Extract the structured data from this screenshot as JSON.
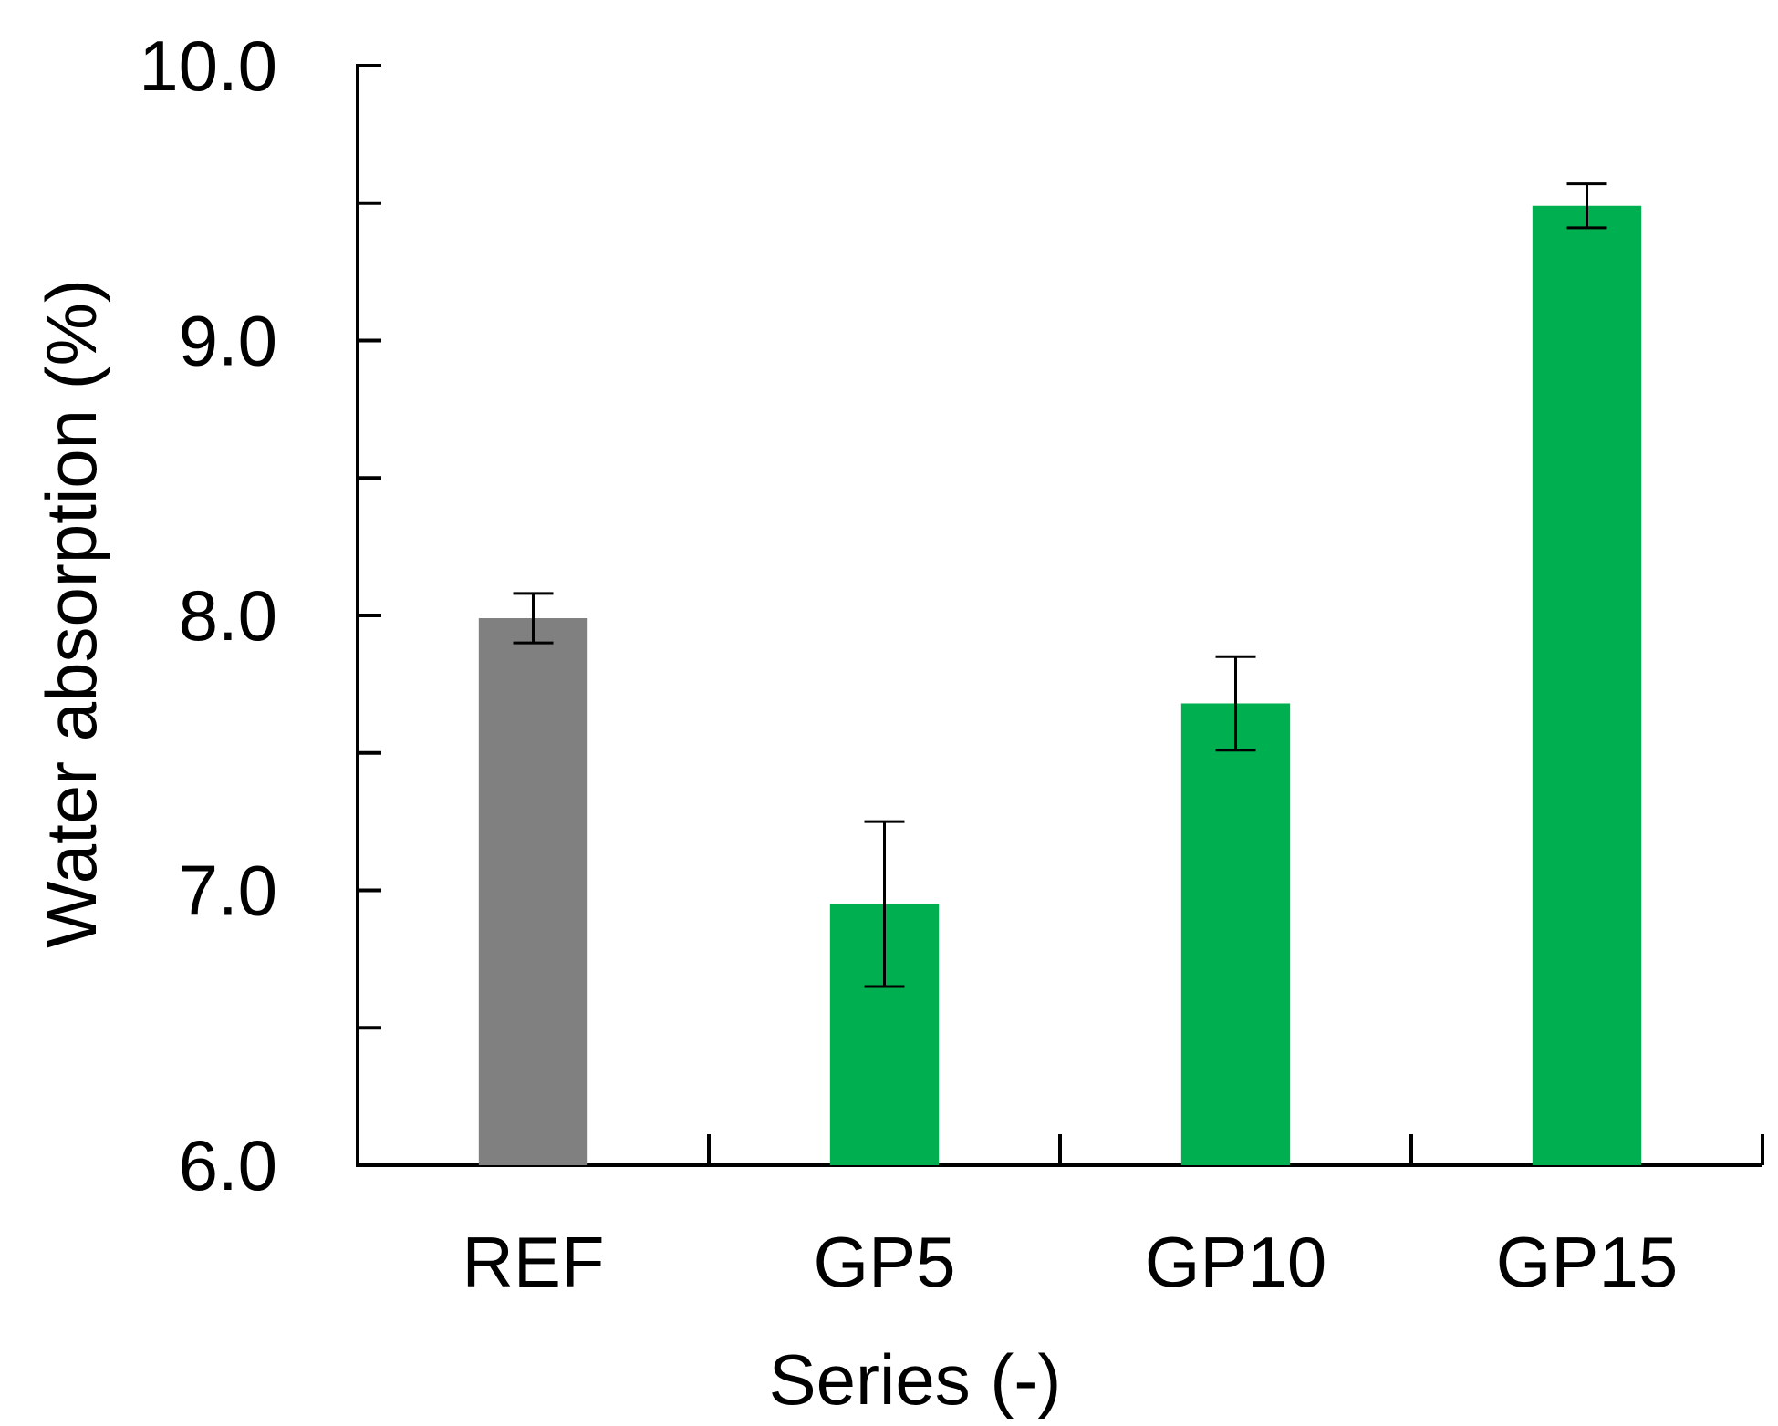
{
  "chart_data": {
    "type": "bar",
    "title": "",
    "xlabel": "Series (-)",
    "ylabel": "Water absorption (%)",
    "ylim": [
      6.0,
      10.0
    ],
    "y_major_ticks": [
      6.0,
      7.0,
      8.0,
      9.0,
      10.0
    ],
    "y_major_tick_labels": [
      "6.0",
      "7.0",
      "8.0",
      "9.0",
      "10.0"
    ],
    "y_minor_ticks": [
      6.5,
      7.5,
      8.5,
      9.5
    ],
    "grid": false,
    "legend": "none",
    "categories": [
      "REF",
      "GP5",
      "GP10",
      "GP15"
    ],
    "values": [
      7.99,
      6.95,
      7.68,
      9.49
    ],
    "error": [
      0.09,
      0.3,
      0.17,
      0.08
    ],
    "colors": [
      "#808080",
      "#00b050",
      "#00b050",
      "#00b050"
    ],
    "axis_color": "#000000",
    "error_bar_color": "#000000"
  }
}
